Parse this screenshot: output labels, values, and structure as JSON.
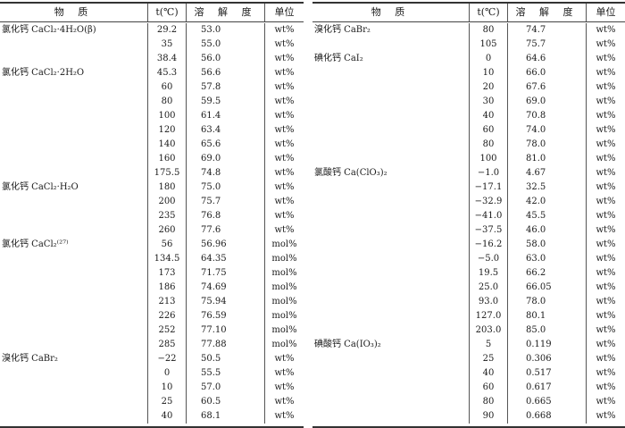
{
  "header": {
    "substance": "物 质",
    "t": "t(℃)",
    "solubility": "溶 解 度",
    "unit": "单位"
  },
  "left_rows": [
    {
      "substance": "氯化钙 CaCl₂·4H₂O(β)",
      "t": "29.2",
      "s": "53.0",
      "unit": "wt%"
    },
    {
      "substance": "",
      "t": "35",
      "s": "55.0",
      "unit": "wt%"
    },
    {
      "substance": "",
      "t": "38.4",
      "s": "56.0",
      "unit": "wt%"
    },
    {
      "substance": "氯化钙 CaCl₂·2H₂O",
      "t": "45.3",
      "s": "56.6",
      "unit": "wt%"
    },
    {
      "substance": "",
      "t": "60",
      "s": "57.8",
      "unit": "wt%"
    },
    {
      "substance": "",
      "t": "80",
      "s": "59.5",
      "unit": "wt%"
    },
    {
      "substance": "",
      "t": "100",
      "s": "61.4",
      "unit": "wt%"
    },
    {
      "substance": "",
      "t": "120",
      "s": "63.4",
      "unit": "wt%"
    },
    {
      "substance": "",
      "t": "140",
      "s": "65.6",
      "unit": "wt%"
    },
    {
      "substance": "",
      "t": "160",
      "s": "69.0",
      "unit": "wt%"
    },
    {
      "substance": "",
      "t": "175.5",
      "s": "74.8",
      "unit": "wt%"
    },
    {
      "substance": "氯化钙 CaCl₂·H₂O",
      "t": "180",
      "s": "75.0",
      "unit": "wt%"
    },
    {
      "substance": "",
      "t": "200",
      "s": "75.7",
      "unit": "wt%"
    },
    {
      "substance": "",
      "t": "235",
      "s": "76.8",
      "unit": "wt%"
    },
    {
      "substance": "",
      "t": "260",
      "s": "77.6",
      "unit": "wt%"
    },
    {
      "substance": "氯化钙 CaCl₂⁽²⁷⁾",
      "t": "56",
      "s": "56.96",
      "unit": "mol%"
    },
    {
      "substance": "",
      "t": "134.5",
      "s": "64.35",
      "unit": "mol%"
    },
    {
      "substance": "",
      "t": "173",
      "s": "71.75",
      "unit": "mol%"
    },
    {
      "substance": "",
      "t": "186",
      "s": "74.69",
      "unit": "mol%"
    },
    {
      "substance": "",
      "t": "213",
      "s": "75.94",
      "unit": "mol%"
    },
    {
      "substance": "",
      "t": "226",
      "s": "76.59",
      "unit": "mol%"
    },
    {
      "substance": "",
      "t": "252",
      "s": "77.10",
      "unit": "mol%"
    },
    {
      "substance": "",
      "t": "285",
      "s": "77.88",
      "unit": "mol%"
    },
    {
      "substance": "溴化钙 CaBr₂",
      "t": "−22",
      "s": "50.5",
      "unit": "wt%"
    },
    {
      "substance": "",
      "t": "0",
      "s": "55.5",
      "unit": "wt%"
    },
    {
      "substance": "",
      "t": "10",
      "s": "57.0",
      "unit": "wt%"
    },
    {
      "substance": "",
      "t": "25",
      "s": "60.5",
      "unit": "wt%"
    },
    {
      "substance": "",
      "t": "40",
      "s": "68.1",
      "unit": "wt%"
    }
  ],
  "right_rows": [
    {
      "substance": "溴化钙 CaBr₂",
      "t": "80",
      "s": "74.7",
      "unit": "wt%"
    },
    {
      "substance": "",
      "t": "105",
      "s": "75.7",
      "unit": "wt%"
    },
    {
      "substance": "碘化钙 CaI₂",
      "t": "0",
      "s": "64.6",
      "unit": "wt%"
    },
    {
      "substance": "",
      "t": "10",
      "s": "66.0",
      "unit": "wt%"
    },
    {
      "substance": "",
      "t": "20",
      "s": "67.6",
      "unit": "wt%"
    },
    {
      "substance": "",
      "t": "30",
      "s": "69.0",
      "unit": "wt%"
    },
    {
      "substance": "",
      "t": "40",
      "s": "70.8",
      "unit": "wt%"
    },
    {
      "substance": "",
      "t": "60",
      "s": "74.0",
      "unit": "wt%"
    },
    {
      "substance": "",
      "t": "80",
      "s": "78.0",
      "unit": "wt%"
    },
    {
      "substance": "",
      "t": "100",
      "s": "81.0",
      "unit": "wt%"
    },
    {
      "substance": "氯酸钙 Ca(ClO₃)₂",
      "t": "−1.0",
      "s": " 4.67",
      "unit": "wt%"
    },
    {
      "substance": "",
      "t": "−17.1",
      "s": "32.5",
      "unit": "wt%"
    },
    {
      "substance": "",
      "t": "−32.9",
      "s": "42.0",
      "unit": "wt%"
    },
    {
      "substance": "",
      "t": "−41.0",
      "s": "45.5",
      "unit": "wt%"
    },
    {
      "substance": "",
      "t": "−37.5",
      "s": "46.0",
      "unit": "wt%"
    },
    {
      "substance": "",
      "t": "−16.2",
      "s": "58.0",
      "unit": "wt%"
    },
    {
      "substance": "",
      "t": "−5.0",
      "s": "63.0",
      "unit": "wt%"
    },
    {
      "substance": "",
      "t": "19.5",
      "s": "66.2",
      "unit": "wt%"
    },
    {
      "substance": "",
      "t": "25.0",
      "s": "66.05",
      "unit": "wt%"
    },
    {
      "substance": "",
      "t": "93.0",
      "s": "78.0",
      "unit": "wt%"
    },
    {
      "substance": "",
      "t": "127.0",
      "s": "80.1",
      "unit": "wt%"
    },
    {
      "substance": "",
      "t": "203.0",
      "s": "85.0",
      "unit": "wt%"
    },
    {
      "substance": "碘酸钙 Ca(IO₃)₂",
      "t": "5",
      "s": " 0.119",
      "unit": "wt%"
    },
    {
      "substance": "",
      "t": "25",
      "s": " 0.306",
      "unit": "wt%"
    },
    {
      "substance": "",
      "t": "40",
      "s": " 0.517",
      "unit": "wt%"
    },
    {
      "substance": "",
      "t": "60",
      "s": " 0.617",
      "unit": "wt%"
    },
    {
      "substance": "",
      "t": "80",
      "s": " 0.665",
      "unit": "wt%"
    },
    {
      "substance": "",
      "t": "90",
      "s": " 0.668",
      "unit": "wt%"
    }
  ]
}
